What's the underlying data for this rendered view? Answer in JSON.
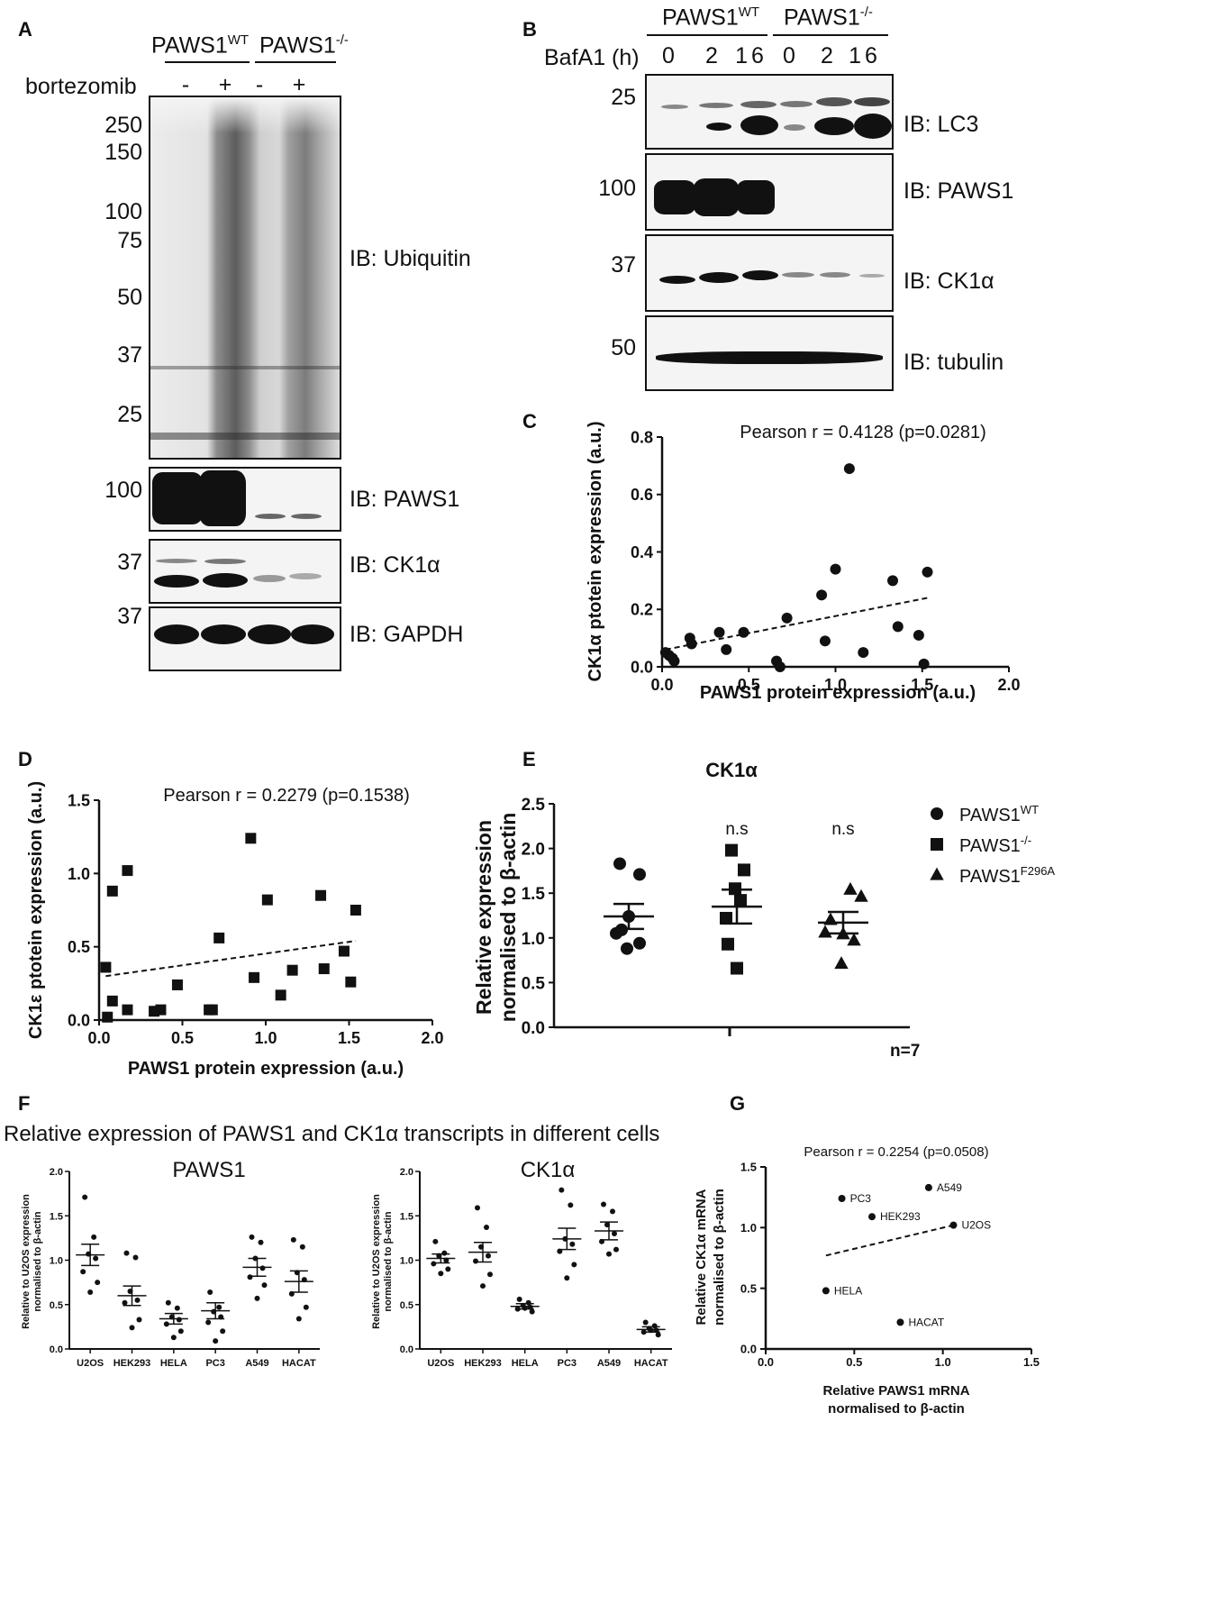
{
  "panels": {
    "A": {
      "label": "A",
      "genotypes": [
        "PAWS1WT",
        "PAWS1-/-"
      ],
      "genotype_parts": [
        {
          "base": "PAWS1",
          "sup": "WT"
        },
        {
          "base": "PAWS1",
          "sup": "-/-"
        }
      ],
      "treatment_label": "bortezomib",
      "lane_signs": [
        "-",
        "+",
        "-",
        "+"
      ],
      "ubiquitin_markers": [
        "250",
        "150",
        "100",
        "75",
        "50",
        "37",
        "25"
      ],
      "blots": [
        {
          "ib": "IB: Ubiquitin"
        },
        {
          "ib": "IB: PAWS1",
          "marker": "100"
        },
        {
          "ib": "IB: CK1α",
          "marker": "37"
        },
        {
          "ib": "IB: GAPDH",
          "marker": "37"
        }
      ]
    },
    "B": {
      "label": "B",
      "genotype_parts": [
        {
          "base": "PAWS1",
          "sup": "WT"
        },
        {
          "base": "PAWS1",
          "sup": "-/-"
        }
      ],
      "treatment_label": "BafA1 (h)",
      "lane_times": [
        "0",
        "2",
        "16",
        "0",
        "2",
        "16"
      ],
      "blots": [
        {
          "ib": "IB: LC3",
          "marker": "25"
        },
        {
          "ib": "IB: PAWS1",
          "marker": "100"
        },
        {
          "ib": "IB: CK1α",
          "marker": "37"
        },
        {
          "ib": "IB: tubulin",
          "marker": "50"
        }
      ]
    },
    "F": {
      "label": "F",
      "title": "Relative expression of PAWS1 and CK1α transcripts in different cells"
    },
    "n_label": "n=7"
  },
  "chart_data": [
    {
      "panel": "C",
      "type": "scatter",
      "annotation": "Pearson r = 0.4128 (p=0.0281)",
      "xlabel": "PAWS1 protein expression (a.u.)",
      "ylabel": "CK1α ptotein expression (a.u.)",
      "xlim": [
        0,
        2.0
      ],
      "ylim": [
        0,
        0.8
      ],
      "xticks": [
        "0.0",
        "0.5",
        "1.0",
        "1.5",
        "2.0"
      ],
      "yticks": [
        "0.0",
        "0.2",
        "0.4",
        "0.6",
        "0.8"
      ],
      "marker": "circle",
      "points": [
        [
          0.02,
          0.05
        ],
        [
          0.04,
          0.04
        ],
        [
          0.06,
          0.03
        ],
        [
          0.07,
          0.02
        ],
        [
          0.16,
          0.1
        ],
        [
          0.17,
          0.08
        ],
        [
          0.33,
          0.12
        ],
        [
          0.37,
          0.06
        ],
        [
          0.47,
          0.12
        ],
        [
          0.66,
          0.02
        ],
        [
          0.68,
          0.0
        ],
        [
          0.72,
          0.17
        ],
        [
          0.92,
          0.25
        ],
        [
          0.94,
          0.09
        ],
        [
          1.0,
          0.34
        ],
        [
          1.08,
          0.69
        ],
        [
          1.16,
          0.05
        ],
        [
          1.33,
          0.3
        ],
        [
          1.36,
          0.14
        ],
        [
          1.48,
          0.11
        ],
        [
          1.51,
          0.01
        ],
        [
          1.53,
          0.33
        ]
      ],
      "trendline": [
        [
          0.02,
          0.06
        ],
        [
          1.53,
          0.24
        ]
      ]
    },
    {
      "panel": "D",
      "type": "scatter",
      "annotation": "Pearson r = 0.2279 (p=0.1538)",
      "xlabel": "PAWS1 protein expression (a.u.)",
      "ylabel": "CK1ε ptotein expression (a.u.)",
      "xlim": [
        0,
        2.0
      ],
      "ylim": [
        0,
        1.5
      ],
      "xticks": [
        "0.0",
        "0.5",
        "1.0",
        "1.5",
        "2.0"
      ],
      "yticks": [
        "0.0",
        "0.5",
        "1.0",
        "1.5"
      ],
      "marker": "square",
      "points": [
        [
          0.04,
          0.36
        ],
        [
          0.05,
          0.02
        ],
        [
          0.08,
          0.88
        ],
        [
          0.08,
          0.13
        ],
        [
          0.17,
          1.02
        ],
        [
          0.17,
          0.07
        ],
        [
          0.33,
          0.06
        ],
        [
          0.37,
          0.07
        ],
        [
          0.47,
          0.24
        ],
        [
          0.66,
          0.07
        ],
        [
          0.68,
          0.07
        ],
        [
          0.72,
          0.56
        ],
        [
          0.91,
          1.24
        ],
        [
          0.93,
          0.29
        ],
        [
          1.01,
          0.82
        ],
        [
          1.09,
          0.17
        ],
        [
          1.16,
          0.34
        ],
        [
          1.33,
          0.85
        ],
        [
          1.35,
          0.35
        ],
        [
          1.47,
          0.47
        ],
        [
          1.51,
          0.26
        ],
        [
          1.54,
          0.75
        ]
      ],
      "trendline": [
        [
          0.04,
          0.3
        ],
        [
          1.54,
          0.54
        ]
      ]
    },
    {
      "panel": "E",
      "type": "scatter",
      "title": "CK1α",
      "ylabel": "Relative expression normalised to β-actin",
      "ylim": [
        0,
        2.5
      ],
      "yticks": [
        "0.0",
        "0.5",
        "1.0",
        "1.5",
        "2.0",
        "2.5"
      ],
      "series": [
        {
          "name_base": "PAWS1",
          "name_sup": "WT",
          "marker": "circle",
          "mean": 1.24,
          "sem": 0.14,
          "values": [
            1.83,
            1.71,
            1.24,
            1.09,
            1.05,
            0.94,
            0.88
          ],
          "sig": ""
        },
        {
          "name_base": "PAWS1",
          "name_sup": "-/-",
          "marker": "square",
          "mean": 1.35,
          "sem": 0.19,
          "values": [
            1.98,
            1.76,
            1.55,
            1.42,
            1.22,
            0.93,
            0.66
          ],
          "sig": "n.s"
        },
        {
          "name_base": "PAWS1",
          "name_sup": "F296A",
          "marker": "triangle",
          "mean": 1.17,
          "sem": 0.12,
          "values": [
            1.54,
            1.46,
            1.2,
            1.06,
            1.04,
            0.97,
            0.71
          ],
          "sig": "n.s"
        }
      ]
    },
    {
      "panel": "F1",
      "type": "scatter",
      "title": "PAWS1",
      "ylabel": "Relative to U2OS expression normalised to β-actin",
      "ylim": [
        0,
        2.0
      ],
      "yticks": [
        "0.0",
        "0.5",
        "1.0",
        "1.5",
        "2.0"
      ],
      "categories": [
        "U2OS",
        "HEK293",
        "HELA",
        "PC3",
        "A549",
        "HACAT"
      ],
      "means": [
        1.06,
        0.6,
        0.34,
        0.43,
        0.92,
        0.76
      ],
      "sems": [
        0.12,
        0.11,
        0.06,
        0.09,
        0.1,
        0.12
      ],
      "points": [
        [
          1.71,
          1.26,
          1.07,
          1.02,
          0.87,
          0.75,
          0.64
        ],
        [
          1.08,
          1.03,
          0.65,
          0.55,
          0.52,
          0.33,
          0.24
        ],
        [
          0.52,
          0.46,
          0.36,
          0.33,
          0.28,
          0.2,
          0.13
        ],
        [
          0.64,
          0.47,
          0.42,
          0.36,
          0.3,
          0.2,
          0.09
        ],
        [
          1.26,
          1.2,
          1.02,
          0.91,
          0.81,
          0.72,
          0.57
        ],
        [
          1.23,
          1.15,
          0.86,
          0.78,
          0.62,
          0.47,
          0.34
        ]
      ]
    },
    {
      "panel": "F2",
      "type": "scatter",
      "title": "CK1α",
      "ylabel": "Relative to U2OS expression normalised to β-actin",
      "ylim": [
        0,
        2.0
      ],
      "yticks": [
        "0.0",
        "0.5",
        "1.0",
        "1.5",
        "2.0"
      ],
      "categories": [
        "U2OS",
        "HEK293",
        "HELA",
        "PC3",
        "A549",
        "HACAT"
      ],
      "means": [
        1.02,
        1.09,
        0.48,
        1.24,
        1.33,
        0.22
      ],
      "sems": [
        0.05,
        0.11,
        0.03,
        0.12,
        0.1,
        0.03
      ],
      "points": [
        [
          1.21,
          1.08,
          1.05,
          1.0,
          0.96,
          0.9,
          0.85
        ],
        [
          1.59,
          1.37,
          1.15,
          1.05,
          0.99,
          0.84,
          0.71
        ],
        [
          0.56,
          0.52,
          0.49,
          0.47,
          0.45,
          0.42,
          0.46
        ],
        [
          1.79,
          1.62,
          1.24,
          1.18,
          1.1,
          0.95,
          0.8
        ],
        [
          1.63,
          1.55,
          1.4,
          1.3,
          1.21,
          1.12,
          1.07
        ],
        [
          0.3,
          0.26,
          0.23,
          0.21,
          0.19,
          0.16,
          0.21
        ]
      ]
    },
    {
      "panel": "G",
      "type": "scatter",
      "annotation": "Pearson r = 0.2254 (p=0.0508)",
      "xlabel": "Relative PAWS1 mRNA normalised to β-actin",
      "xlabel_lines": [
        "Relative PAWS1 mRNA",
        "normalised to β-actin"
      ],
      "ylabel": "Relative CK1α mRNA normalised to β-actin",
      "ylabel_lines": [
        "Relative CK1α mRNA",
        "normalised to β-actin"
      ],
      "xlim": [
        0,
        1.5
      ],
      "ylim": [
        0,
        1.5
      ],
      "xticks": [
        "0.0",
        "0.5",
        "1.0",
        "1.5"
      ],
      "yticks": [
        "0.0",
        "0.5",
        "1.0",
        "1.5"
      ],
      "points": [
        {
          "label": "PC3",
          "x": 0.43,
          "y": 1.24
        },
        {
          "label": "A549",
          "x": 0.92,
          "y": 1.33
        },
        {
          "label": "HEK293",
          "x": 0.6,
          "y": 1.09
        },
        {
          "label": "U2OS",
          "x": 1.06,
          "y": 1.02
        },
        {
          "label": "HELA",
          "x": 0.34,
          "y": 0.48
        },
        {
          "label": "HACAT",
          "x": 0.76,
          "y": 0.22
        }
      ],
      "trendline": [
        [
          0.34,
          0.77
        ],
        [
          1.06,
          1.02
        ]
      ]
    }
  ]
}
